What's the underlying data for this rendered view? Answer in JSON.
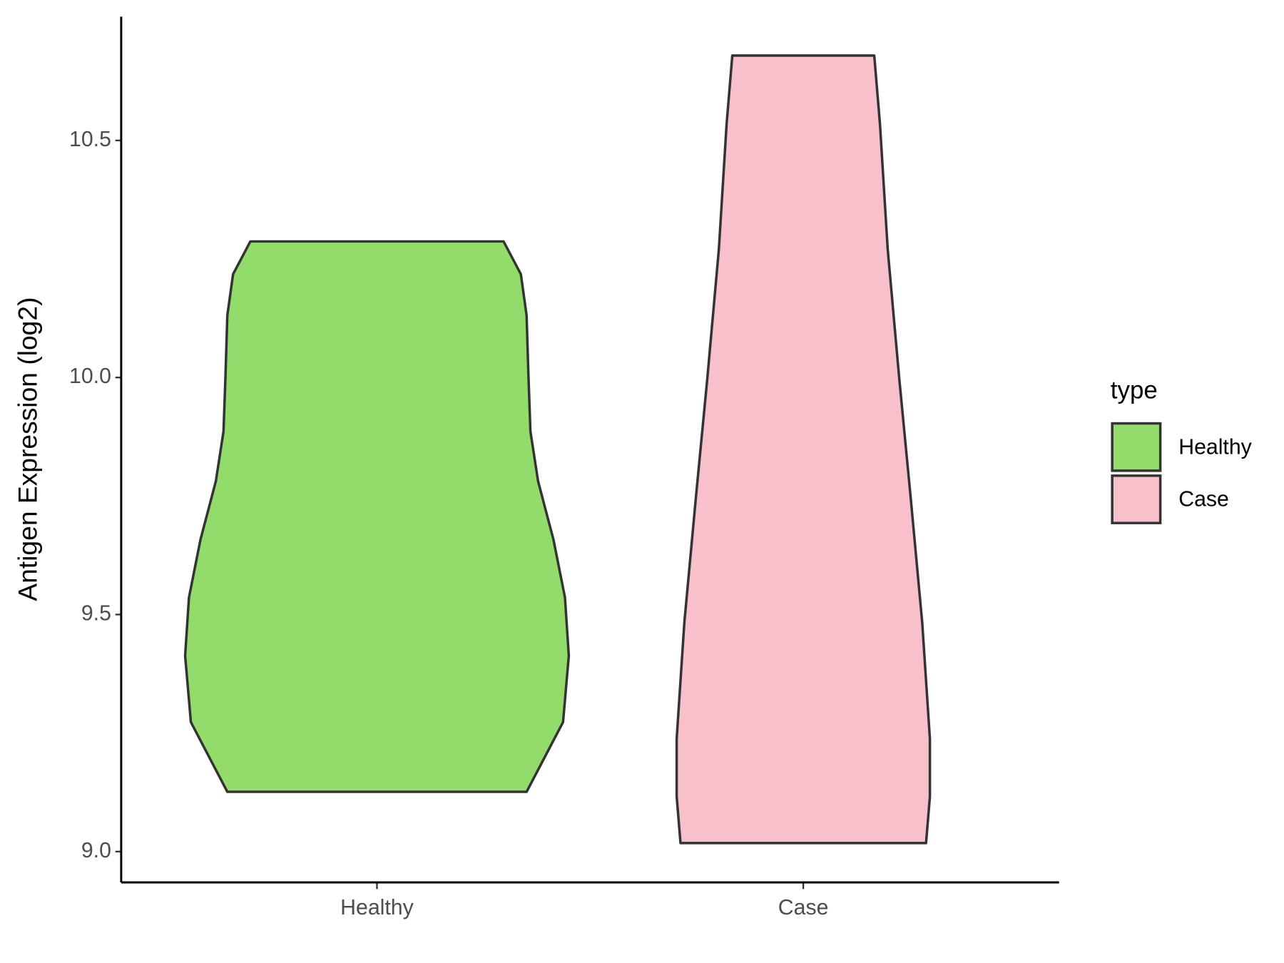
{
  "chart_data": {
    "type": "violin",
    "y_label": "Antigen Expression (log2)",
    "categories": [
      "Healthy",
      "Case"
    ],
    "legend_title": "type",
    "legend_position": "right",
    "ylim": [
      8.935,
      10.761
    ],
    "yticks": [
      {
        "value": 9.0,
        "label": "9.0"
      },
      {
        "value": 9.5,
        "label": "9.5"
      },
      {
        "value": 10.0,
        "label": "10.0"
      },
      {
        "value": 10.5,
        "label": "10.5"
      }
    ],
    "grid": false,
    "series": [
      {
        "name": "Healthy",
        "color": "#93dc6b",
        "y": [
          10.287,
          10.218,
          10.131,
          9.999,
          9.886,
          9.781,
          9.658,
          9.536,
          9.413,
          9.273,
          9.126
        ],
        "width": [
          0.66,
          0.75,
          0.78,
          0.79,
          0.8,
          0.84,
          0.92,
          0.98,
          1.0,
          0.97,
          0.78
        ]
      },
      {
        "name": "Case",
        "color": "#f7c0cb",
        "y": [
          10.679,
          10.533,
          10.271,
          9.999,
          9.746,
          9.483,
          9.238,
          9.116,
          9.018
        ],
        "width": [
          0.37,
          0.4,
          0.44,
          0.5,
          0.56,
          0.62,
          0.66,
          0.66,
          0.64
        ]
      }
    ]
  }
}
